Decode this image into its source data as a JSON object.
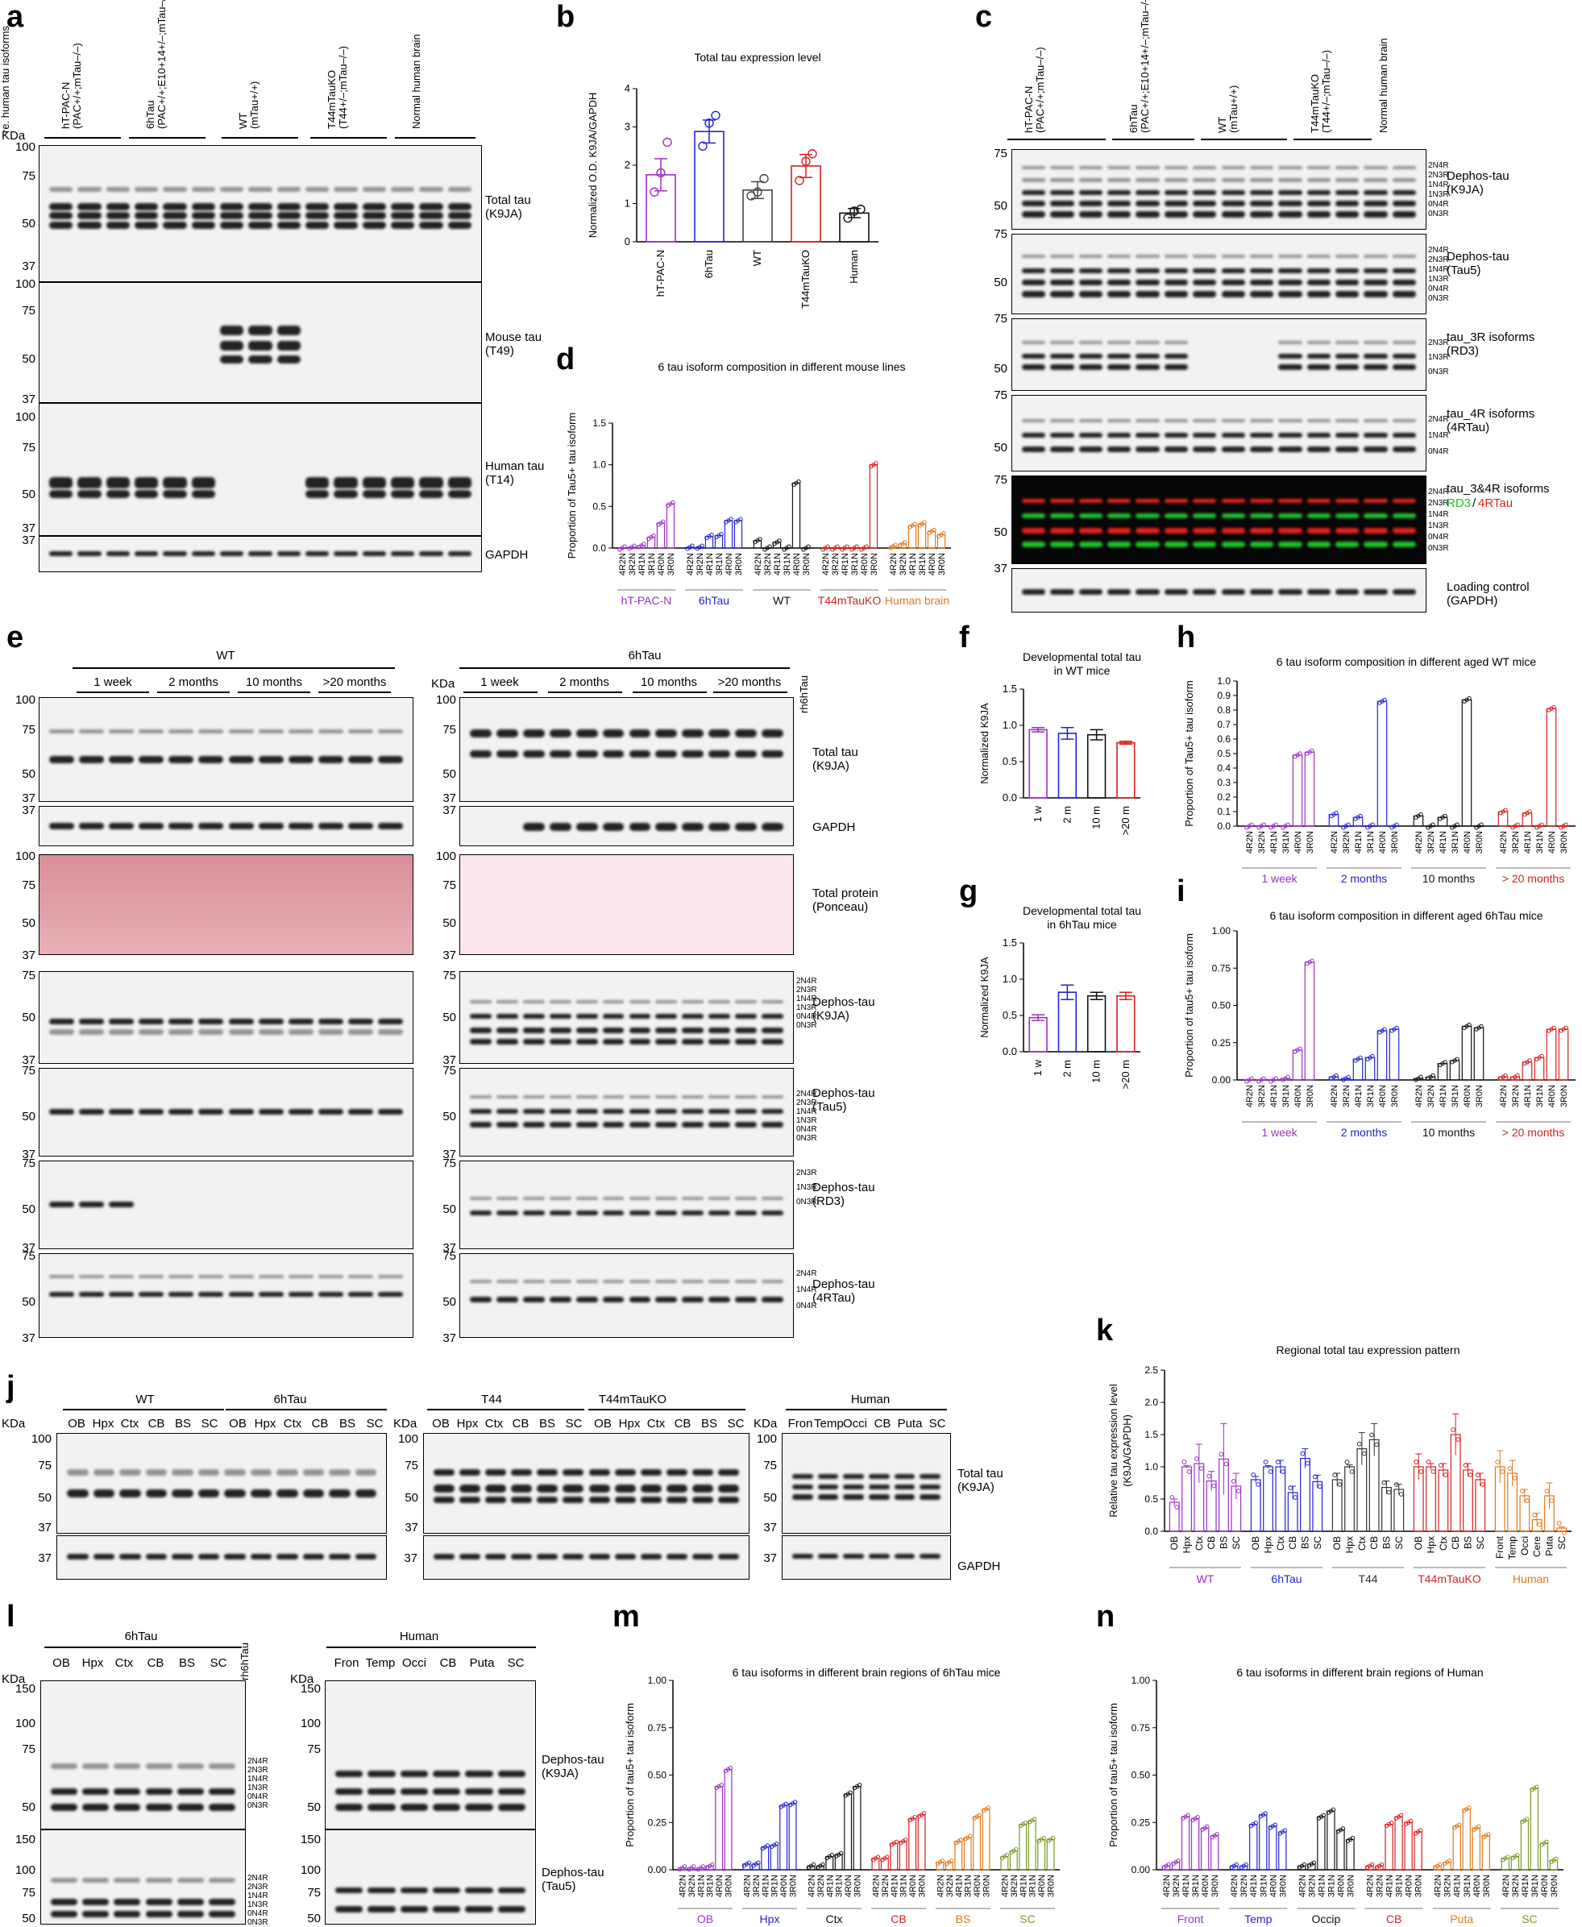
{
  "panels": {
    "a": {
      "letter": "a",
      "groups": [
        "hT-PAC-N\n(PAC+/+;mTau–/–)",
        "6hTau\n(PAC+/+;E10+14+/–;mTau–/–)",
        "WT\n(mTau+/+)",
        "T44mTauKO\n(T44+/–;mTau–/–)",
        "Normal human brain"
      ],
      "kda_label": "KDa",
      "markers_top": [
        "100",
        "75",
        "50",
        "37"
      ],
      "markers_mid": [
        "100",
        "75",
        "50",
        "37"
      ],
      "markers_bot": [
        "100",
        "75",
        "50",
        "37"
      ],
      "marker_last": "37",
      "blots": [
        "Total tau\n(K9JA)",
        "Mouse tau\n(T49)",
        "Human tau\n(T14)",
        "GAPDH"
      ]
    },
    "b": {
      "letter": "b",
      "chart_data": {
        "type": "bar",
        "title": "Total tau expression level",
        "ylabel": "Normalized O.D. K9JA/GAPDH",
        "categories": [
          "hT-PAC-N",
          "6hTau",
          "WT",
          "T44mTauKO",
          "Human"
        ],
        "values": [
          1.75,
          2.88,
          1.35,
          1.98,
          0.75
        ],
        "errors": [
          0.42,
          0.3,
          0.22,
          0.3,
          0.12
        ],
        "points": [
          [
            1.3,
            1.8,
            2.6
          ],
          [
            2.5,
            3.1,
            3.3
          ],
          [
            1.2,
            1.3,
            1.65
          ],
          [
            1.6,
            2.1,
            2.3
          ],
          [
            0.62,
            0.8,
            0.85
          ]
        ],
        "colors": [
          "#9b30c7",
          "#2424cc",
          "#444444",
          "#d62020",
          "#111111"
        ],
        "yticks": [
          "0",
          "1",
          "2",
          "3",
          "4"
        ],
        "ylim": [
          0,
          4
        ]
      }
    },
    "c": {
      "letter": "c",
      "groups": [
        "hT-PAC-N\n(PAC+/+;mTau–/–)",
        "6hTau\n(PAC+/+;E10+14+/–;mTau–/–)",
        "WT\n(mTau+/+)",
        "T44mTauKO\n(T44+/–;mTau–/–)",
        "Normal human brain",
        "re. human tau isoforms"
      ],
      "blots": [
        "Dephos-tau\n(K9JA)",
        "Dephos-tau\n(Tau5)",
        "tau_3R isoforms\n(RD3)",
        "tau_4R isoforms\n(4RTau)",
        "tau_3&4R isoforms",
        "Loading control\n(GAPDH)"
      ],
      "merged_label_green": "RD3",
      "merged_label_slash": "/",
      "merged_label_red": "4RTau",
      "iso6": [
        "2N4R",
        "2N3R",
        "1N4R",
        "1N3R",
        "0N4R",
        "0N3R"
      ],
      "iso3r": [
        "2N3R",
        "1N3R",
        "0N3R"
      ],
      "iso4r": [
        "2N4R",
        "1N4R",
        "0N4R"
      ],
      "markers": [
        "75",
        "50",
        "75",
        "50",
        "75",
        "50",
        "75",
        "50",
        "75",
        "50",
        "37"
      ]
    },
    "d": {
      "letter": "d",
      "chart_data": {
        "type": "bar",
        "title": "6 tau isoform composition in different mouse lines",
        "ylabel": "Proportion of Tau5+ tau isoform",
        "isoforms": [
          "4R2N",
          "3R2N",
          "4R1N",
          "3R1N",
          "4R0N",
          "3R0N"
        ],
        "groups": [
          {
            "name": "hT-PAC-N",
            "color": "#9b30c7",
            "values": [
              0.0,
              0.01,
              0.03,
              0.13,
              0.3,
              0.53
            ]
          },
          {
            "name": "6hTau",
            "color": "#2424cc",
            "values": [
              0.01,
              0.01,
              0.14,
              0.15,
              0.33,
              0.33
            ]
          },
          {
            "name": "WT",
            "color": "#111111",
            "values": [
              0.09,
              0.0,
              0.07,
              0.0,
              0.78,
              0.0
            ]
          },
          {
            "name": "T44mTauKO",
            "color": "#d62020",
            "values": [
              0.0,
              0.0,
              0.0,
              0.0,
              0.0,
              1.0
            ]
          },
          {
            "name": "Human brain",
            "color": "#e07a1c",
            "values": [
              0.02,
              0.05,
              0.27,
              0.29,
              0.2,
              0.16
            ]
          }
        ],
        "yticks": [
          "0.0",
          "0.5",
          "1.0",
          "1.5"
        ],
        "ylim": [
          0,
          1.5
        ]
      }
    },
    "e": {
      "letter": "e",
      "wt_title": "WT",
      "htau_title": "6hTau",
      "ages": [
        "1 week",
        "2 months",
        "10 months",
        ">20 months"
      ],
      "rh6htau": "rh6hTau",
      "kda_label": "KDa",
      "blot_labels": [
        "Total tau\n(K9JA)",
        "GAPDH",
        "Total protein\n(Ponceau)",
        "Dephos-tau\n(K9JA)",
        "Dephos-tau\n(Tau5)",
        "Dephos-tau\n(RD3)",
        "Dephos-tau\n(4RTau)"
      ],
      "iso6": [
        "2N4R",
        "2N3R",
        "1N4R",
        "1N3R",
        "0N4R",
        "0N3R"
      ],
      "iso3r": [
        "2N3R",
        "1N3R",
        "0N3R"
      ],
      "iso4r": [
        "2N4R",
        "1N4R",
        "0N4R"
      ],
      "markers_a": [
        "100",
        "75",
        "50",
        "37"
      ],
      "markers_b": [
        "37"
      ],
      "markers_c": [
        "100",
        "75",
        "50",
        "37"
      ],
      "markers_d": [
        "75",
        "50",
        "37"
      ],
      "markers_e": [
        "75",
        "50",
        "37"
      ],
      "markers_f": [
        "75",
        "50",
        "37"
      ],
      "markers_g": [
        "75",
        "50",
        "37"
      ]
    },
    "f": {
      "letter": "f",
      "chart_data": {
        "type": "bar",
        "title": "Developmental total tau\nin WT mice",
        "ylabel": "Normalized K9JA",
        "categories": [
          "1 w",
          "2 m",
          "10 m",
          ">20 m"
        ],
        "values": [
          0.94,
          0.89,
          0.87,
          0.76
        ],
        "errors": [
          0.03,
          0.08,
          0.07,
          0.02
        ],
        "colors": [
          "#9b30c7",
          "#2424cc",
          "#111111",
          "#d62020"
        ],
        "yticks": [
          "0.0",
          "0.5",
          "1.0",
          "1.5"
        ],
        "ylim": [
          0,
          1.5
        ]
      }
    },
    "g": {
      "letter": "g",
      "chart_data": {
        "type": "bar",
        "title": "Developmental total tau\nin 6hTau mice",
        "ylabel": "Normalized K9JA",
        "categories": [
          "1 w",
          "2 m",
          "10 m",
          ">20 m"
        ],
        "values": [
          0.47,
          0.82,
          0.77,
          0.77
        ],
        "errors": [
          0.04,
          0.1,
          0.05,
          0.05
        ],
        "colors": [
          "#9b30c7",
          "#2424cc",
          "#111111",
          "#d62020"
        ],
        "yticks": [
          "0.0",
          "0.5",
          "1.0",
          "1.5"
        ],
        "ylim": [
          0,
          1.5
        ]
      }
    },
    "h": {
      "letter": "h",
      "chart_data": {
        "type": "bar",
        "title": "6 tau isoform composition in different aged WT mice",
        "ylabel": "Proportion of Tau5+ tau isoform",
        "isoforms": [
          "4R2N",
          "3R2N",
          "4R1N",
          "3R1N",
          "4R0N",
          "3R0N"
        ],
        "groups": [
          {
            "name": "1 week",
            "color": "#9b30c7",
            "values": [
              0,
              0,
              0,
              0,
              0.49,
              0.51
            ]
          },
          {
            "name": "2 months",
            "color": "#2424cc",
            "values": [
              0.08,
              0,
              0.06,
              0,
              0.86,
              0
            ]
          },
          {
            "name": "10 months",
            "color": "#111111",
            "values": [
              0.07,
              0,
              0.06,
              0,
              0.87,
              0
            ]
          },
          {
            "name": "> 20 months",
            "color": "#d62020",
            "values": [
              0.1,
              0,
              0.09,
              0,
              0.81,
              0
            ]
          }
        ],
        "yticks": [
          "0.0",
          "0.1",
          "0.2",
          "0.3",
          "0.4",
          "0.5",
          "0.6",
          "0.7",
          "0.8",
          "0.9",
          "1.0"
        ],
        "ylim": [
          0,
          1.0
        ]
      }
    },
    "i": {
      "letter": "i",
      "chart_data": {
        "type": "bar",
        "title": "6 tau isoform composition in different aged 6hTau mice",
        "ylabel": "Proportion of tau5+ tau isoform",
        "isoforms": [
          "4R2N",
          "3R2N",
          "4R1N",
          "3R1N",
          "4R0N",
          "3R0N"
        ],
        "groups": [
          {
            "name": "1 week",
            "color": "#9b30c7",
            "values": [
              0,
              0,
              0,
              0.01,
              0.2,
              0.79
            ]
          },
          {
            "name": "2 months",
            "color": "#2424cc",
            "values": [
              0.02,
              0.01,
              0.14,
              0.15,
              0.33,
              0.34
            ]
          },
          {
            "name": "10 months",
            "color": "#111111",
            "values": [
              0.01,
              0.02,
              0.11,
              0.13,
              0.36,
              0.35
            ]
          },
          {
            "name": "> 20 months",
            "color": "#d62020",
            "values": [
              0.02,
              0.02,
              0.12,
              0.15,
              0.34,
              0.34
            ]
          }
        ],
        "yticks": [
          "0.00",
          "0.25",
          "0.50",
          "0.75",
          "1.00"
        ],
        "ylim": [
          0,
          1.0
        ]
      }
    },
    "j": {
      "letter": "j",
      "kda_label": "KDa",
      "wt": "WT",
      "htau": "6hTau",
      "t44": "T44",
      "t44ko": "T44mTauKO",
      "human": "Human",
      "mouse_regions": [
        "OB",
        "Hpx",
        "Ctx",
        "CB",
        "BS",
        "SC"
      ],
      "human_regions": [
        "Fron",
        "Temp",
        "Occi",
        "CB",
        "Puta",
        "SC"
      ],
      "markers": [
        "100",
        "75",
        "50",
        "37"
      ],
      "marker_gapdh": "37",
      "blot_labels": [
        "Total tau\n(K9JA)",
        "GAPDH"
      ]
    },
    "k": {
      "letter": "k",
      "chart_data": {
        "type": "bar",
        "title": "Regional total tau expression pattern",
        "ylabel": "Relative tau expression level\n(K9JA/GAPDH)",
        "groups": [
          {
            "name": "WT",
            "color": "#9b30c7",
            "categories": [
              "OB",
              "Hpx",
              "Ctx",
              "CB",
              "BS",
              "SC"
            ],
            "values": [
              0.45,
              1.0,
              1.05,
              0.78,
              1.12,
              0.7
            ],
            "errors": [
              0.05,
              0.02,
              0.3,
              0.15,
              0.55,
              0.2
            ]
          },
          {
            "name": "6hTau",
            "color": "#2424cc",
            "categories": [
              "OB",
              "Hpx",
              "Ctx",
              "CB",
              "BS",
              "SC"
            ],
            "values": [
              0.8,
              1.0,
              1.0,
              0.6,
              1.13,
              0.77
            ],
            "errors": [
              0.05,
              0.02,
              0.1,
              0.1,
              0.15,
              0.1
            ]
          },
          {
            "name": "T44",
            "color": "#333333",
            "categories": [
              "OB",
              "Hpx",
              "Ctx",
              "CB",
              "BS",
              "SC"
            ],
            "values": [
              0.8,
              1.0,
              1.28,
              1.42,
              0.68,
              0.65
            ],
            "errors": [
              0.1,
              0.03,
              0.25,
              0.25,
              0.1,
              0.08
            ]
          },
          {
            "name": "T44mTauKO",
            "color": "#d62020",
            "categories": [
              "OB",
              "Hpx",
              "Ctx",
              "CB",
              "BS",
              "SC"
            ],
            "values": [
              1.0,
              1.0,
              0.95,
              1.5,
              0.95,
              0.8
            ],
            "errors": [
              0.2,
              0.05,
              0.1,
              0.32,
              0.1,
              0.1
            ]
          },
          {
            "name": "Human",
            "color": "#e07a1c",
            "categories": [
              "Front",
              "Temp",
              "Occi",
              "Cere",
              "Puta",
              "SC"
            ],
            "values": [
              1.0,
              0.9,
              0.55,
              0.18,
              0.55,
              0.05
            ],
            "errors": [
              0.25,
              0.2,
              0.1,
              0.1,
              0.2,
              0.02
            ]
          }
        ],
        "yticks": [
          "0.0",
          "0.5",
          "1.0",
          "1.5",
          "2.0",
          "2.5"
        ],
        "ylim": [
          0,
          2.5
        ]
      }
    },
    "l": {
      "letter": "l",
      "kda_label": "KDa",
      "htau": "6hTau",
      "human": "Human",
      "rh6htau": "rh6hTau",
      "mouse_regions": [
        "OB",
        "Hpx",
        "Ctx",
        "CB",
        "BS",
        "SC"
      ],
      "human_regions": [
        "Fron",
        "Temp",
        "Occi",
        "CB",
        "Puta",
        "SC"
      ],
      "markers_top": [
        "150",
        "100",
        "75",
        "50"
      ],
      "markers_bot": [
        "150",
        "100",
        "75",
        "50"
      ],
      "blot_labels": [
        "Dephos-tau\n(K9JA)",
        "Dephos-tau\n(Tau5)"
      ],
      "iso6": [
        "2N4R",
        "2N3R",
        "1N4R",
        "1N3R",
        "0N4R",
        "0N3R"
      ]
    },
    "m": {
      "letter": "m",
      "chart_data": {
        "type": "bar",
        "title": "6 tau isoforms in different brain regions of 6hTau mice",
        "ylabel": "Proportion of tau5+ tau isoform",
        "isoforms": [
          "4R2N",
          "3R2N",
          "4R1N",
          "3R1N",
          "4R0N",
          "3R0N"
        ],
        "groups": [
          {
            "name": "OB",
            "color": "#9b30c7",
            "values": [
              0.01,
              0.01,
              0.01,
              0.02,
              0.44,
              0.53
            ]
          },
          {
            "name": "Hpx",
            "color": "#2424cc",
            "values": [
              0.03,
              0.03,
              0.12,
              0.13,
              0.34,
              0.35
            ]
          },
          {
            "name": "Ctx",
            "color": "#111111",
            "values": [
              0.02,
              0.02,
              0.07,
              0.08,
              0.4,
              0.44
            ]
          },
          {
            "name": "CB",
            "color": "#d62020",
            "values": [
              0.06,
              0.06,
              0.14,
              0.15,
              0.27,
              0.29
            ]
          },
          {
            "name": "BS",
            "color": "#e07a1c",
            "values": [
              0.04,
              0.04,
              0.15,
              0.17,
              0.28,
              0.32
            ]
          },
          {
            "name": "SC",
            "color": "#7a9a2a",
            "values": [
              0.07,
              0.1,
              0.24,
              0.26,
              0.16,
              0.16
            ]
          }
        ],
        "yticks": [
          "0.00",
          "0.25",
          "0.50",
          "0.75",
          "1.00"
        ],
        "ylim": [
          0,
          1.0
        ]
      }
    },
    "n": {
      "letter": "n",
      "chart_data": {
        "type": "bar",
        "title": "6 tau isoforms in different brain regions of Human",
        "ylabel": "Proportion of tau5+ tau isoform",
        "isoforms": [
          "4R2N",
          "3R2N",
          "4R1N",
          "3R1N",
          "4R0N",
          "3R0N"
        ],
        "groups": [
          {
            "name": "Front",
            "color": "#9b30c7",
            "values": [
              0.02,
              0.04,
              0.28,
              0.27,
              0.22,
              0.18
            ]
          },
          {
            "name": "Temp",
            "color": "#2424cc",
            "values": [
              0.02,
              0.02,
              0.24,
              0.29,
              0.23,
              0.2
            ]
          },
          {
            "name": "Occip",
            "color": "#111111",
            "values": [
              0.02,
              0.03,
              0.28,
              0.31,
              0.21,
              0.16
            ]
          },
          {
            "name": "CB",
            "color": "#d62020",
            "values": [
              0.02,
              0.02,
              0.24,
              0.28,
              0.25,
              0.2
            ]
          },
          {
            "name": "Puta",
            "color": "#e07a1c",
            "values": [
              0.02,
              0.04,
              0.23,
              0.32,
              0.22,
              0.18
            ]
          },
          {
            "name": "SC",
            "color": "#7a9a2a",
            "values": [
              0.06,
              0.07,
              0.26,
              0.43,
              0.14,
              0.05
            ]
          }
        ],
        "yticks": [
          "0.00",
          "0.25",
          "0.50",
          "0.75",
          "1.00"
        ],
        "ylim": [
          0,
          1.0
        ]
      }
    }
  }
}
